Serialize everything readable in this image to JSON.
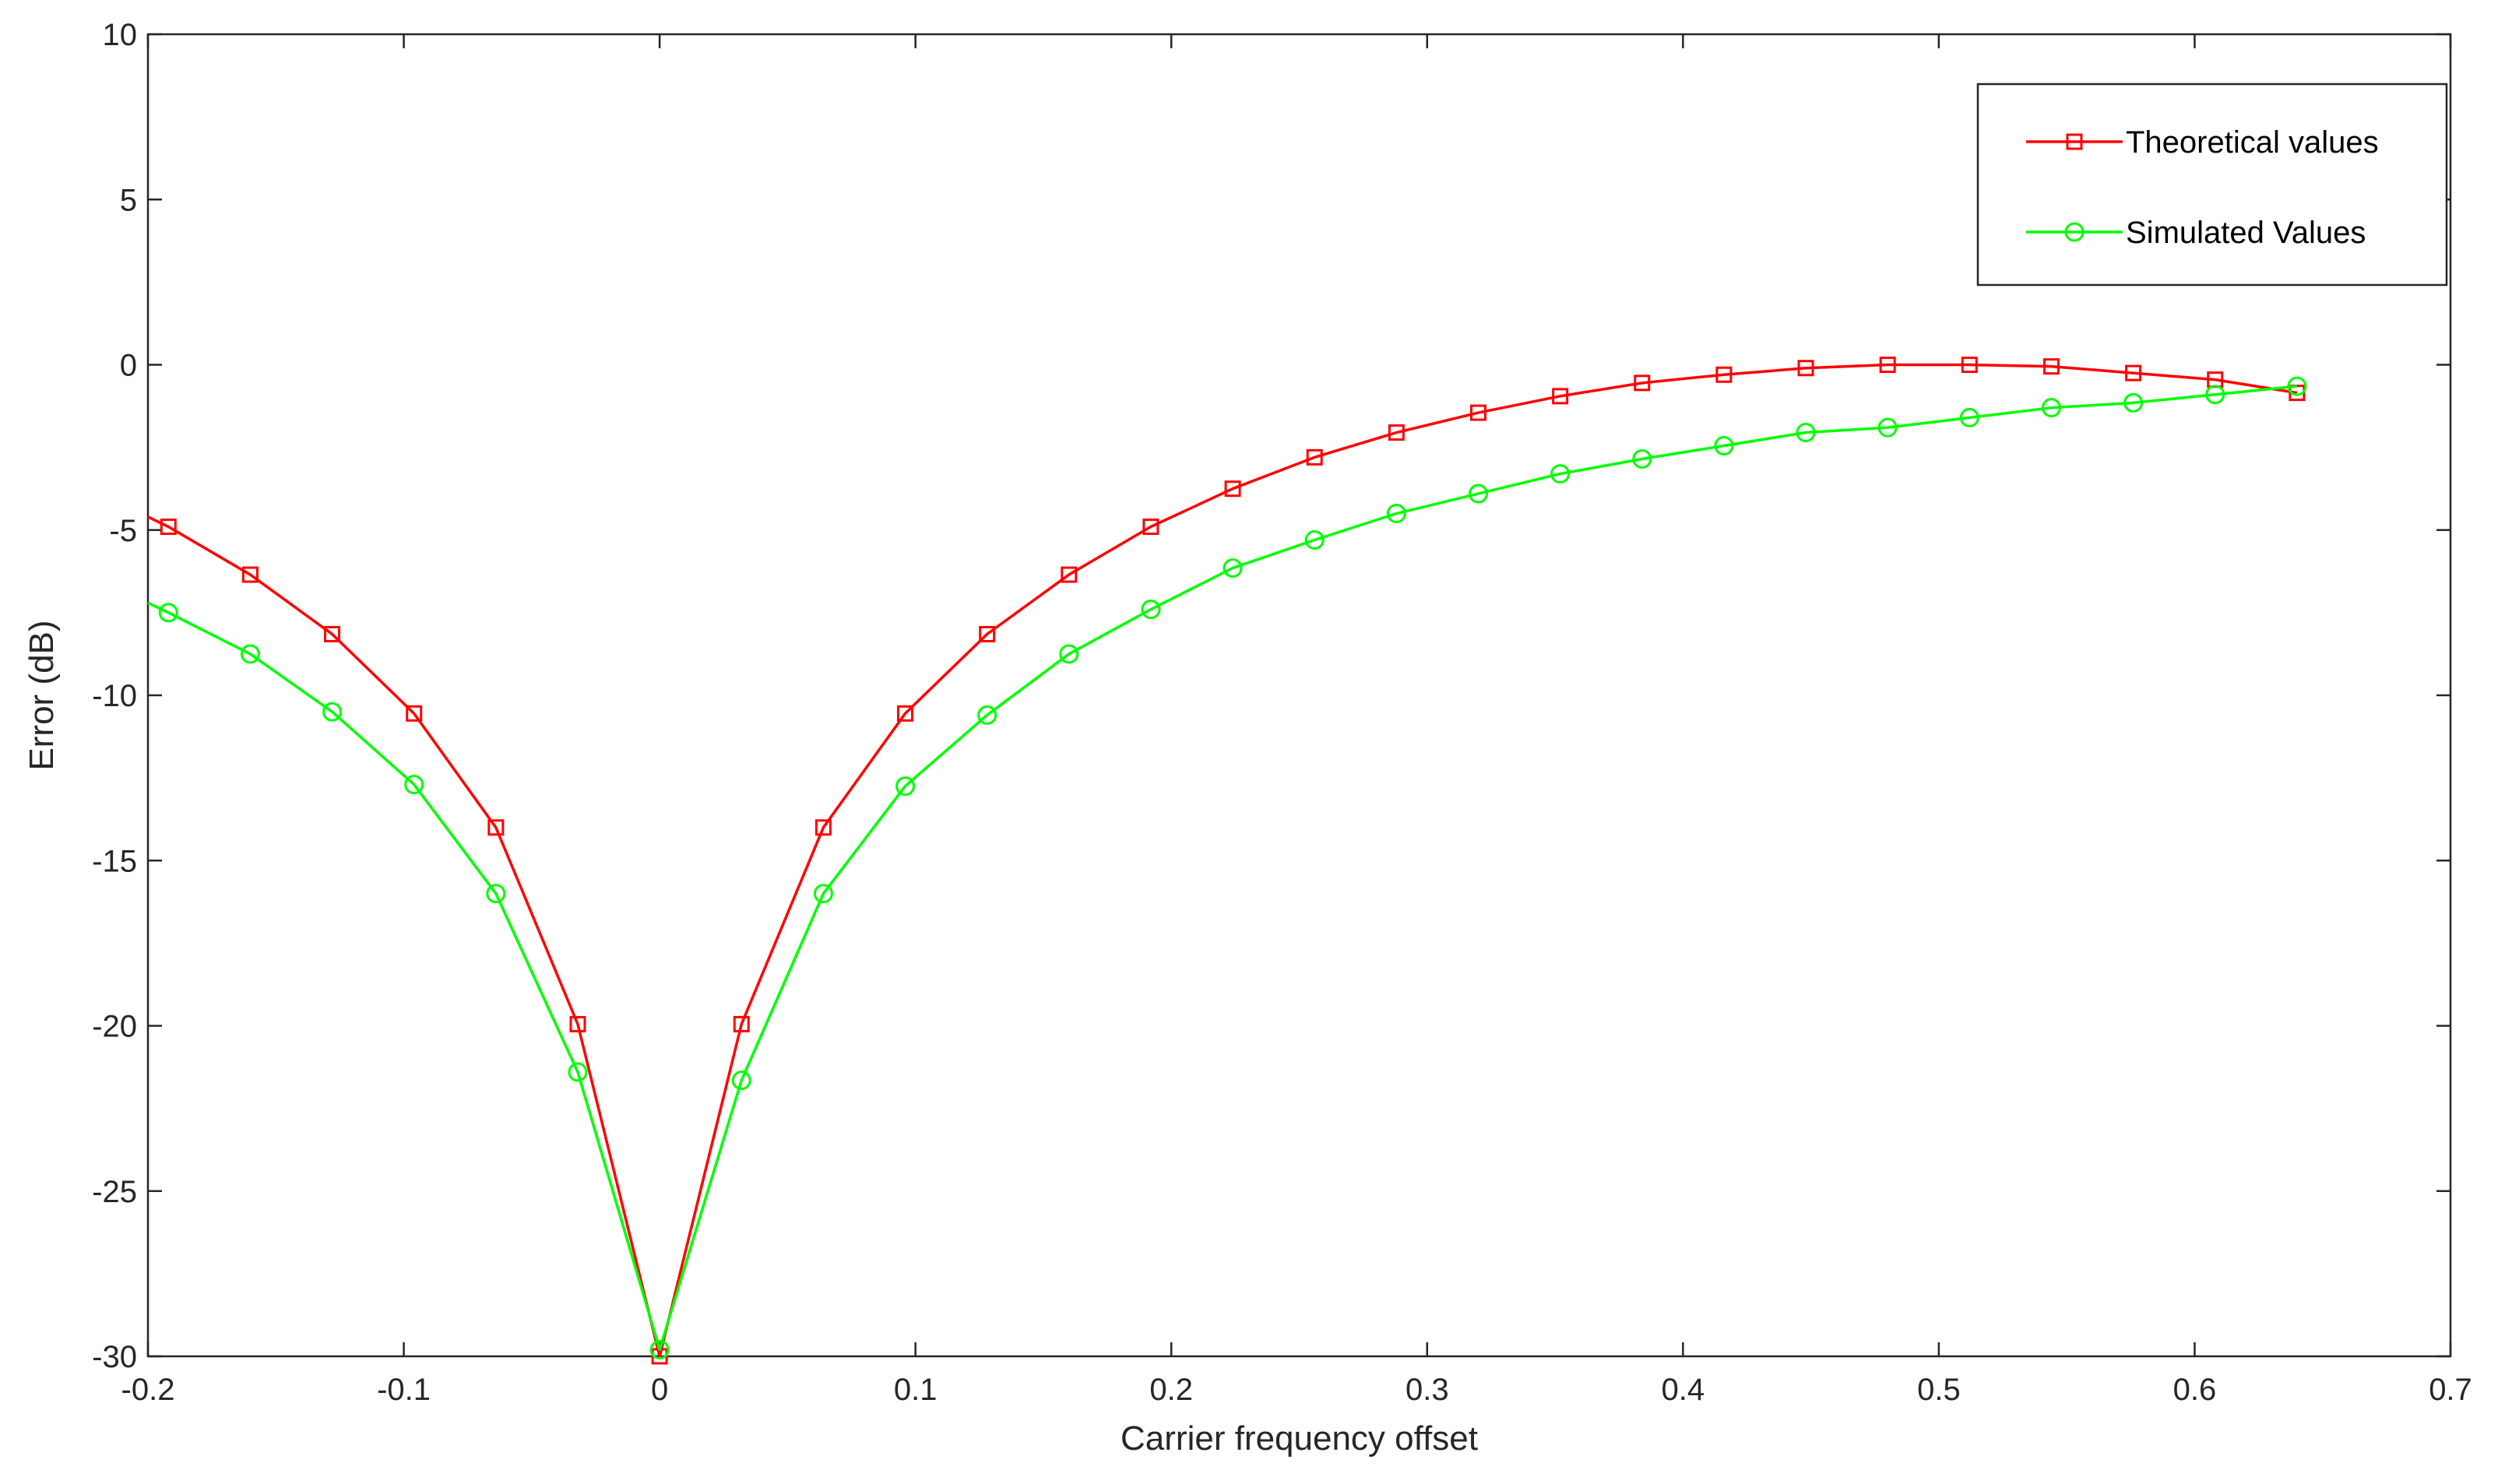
{
  "chart_data": {
    "type": "line",
    "title": "",
    "xlabel": "Carrier frequency offset",
    "ylabel": "Error (dB)",
    "xlim": [
      -0.2,
      0.7
    ],
    "ylim": [
      -30,
      10
    ],
    "xticks": [
      -0.2,
      -0.1,
      0,
      0.1,
      0.2,
      0.3,
      0.4,
      0.5,
      0.6,
      0.7
    ],
    "xtick_labels": [
      "-0.2",
      "-0.1",
      "0",
      "0.1",
      "0.2",
      "0.3",
      "0.4",
      "0.5",
      "0.6",
      "0.7"
    ],
    "yticks": [
      10,
      5,
      0,
      -5,
      -10,
      -15,
      -20,
      -25,
      -30
    ],
    "ytick_labels": [
      "10",
      "5",
      "0",
      "-5",
      "-10",
      "-15",
      "-20",
      "-25",
      "-30"
    ],
    "grid": false,
    "legend_position": "top-right",
    "series": [
      {
        "name": "Theoretical values",
        "color": "#ff0000",
        "marker": "square",
        "line_start": [
          -0.2,
          -4.6
        ],
        "x": [
          -0.192,
          -0.16,
          -0.128,
          -0.096,
          -0.064,
          -0.032,
          0,
          0.032,
          0.064,
          0.096,
          0.128,
          0.16,
          0.192,
          0.224,
          0.256,
          0.288,
          0.32,
          0.352,
          0.384,
          0.416,
          0.448,
          0.48,
          0.512,
          0.544,
          0.576,
          0.608,
          0.64
        ],
        "y": [
          -4.9,
          -6.35,
          -8.15,
          -10.55,
          -14.0,
          -19.95,
          -30.0,
          -19.95,
          -14.0,
          -10.55,
          -8.15,
          -6.35,
          -4.9,
          -3.75,
          -2.8,
          -2.05,
          -1.45,
          -0.95,
          -0.55,
          -0.3,
          -0.1,
          0.0,
          0.0,
          -0.05,
          -0.25,
          -0.45,
          -0.85
        ]
      },
      {
        "name": "Simulated Values",
        "color": "#00ff00",
        "marker": "circle",
        "line_start": [
          -0.2,
          -7.2
        ],
        "x": [
          -0.192,
          -0.16,
          -0.128,
          -0.096,
          -0.064,
          -0.032,
          0,
          0.032,
          0.064,
          0.096,
          0.128,
          0.16,
          0.192,
          0.224,
          0.256,
          0.288,
          0.32,
          0.352,
          0.384,
          0.416,
          0.448,
          0.48,
          0.512,
          0.544,
          0.576,
          0.608,
          0.64
        ],
        "y": [
          -7.5,
          -8.75,
          -10.5,
          -12.7,
          -16.0,
          -21.4,
          -29.8,
          -21.65,
          -16.0,
          -12.75,
          -10.6,
          -8.75,
          -7.4,
          -6.15,
          -5.3,
          -4.5,
          -3.9,
          -3.3,
          -2.85,
          -2.45,
          -2.05,
          -1.9,
          -1.6,
          -1.3,
          -1.15,
          -0.9,
          -0.65
        ]
      }
    ]
  }
}
